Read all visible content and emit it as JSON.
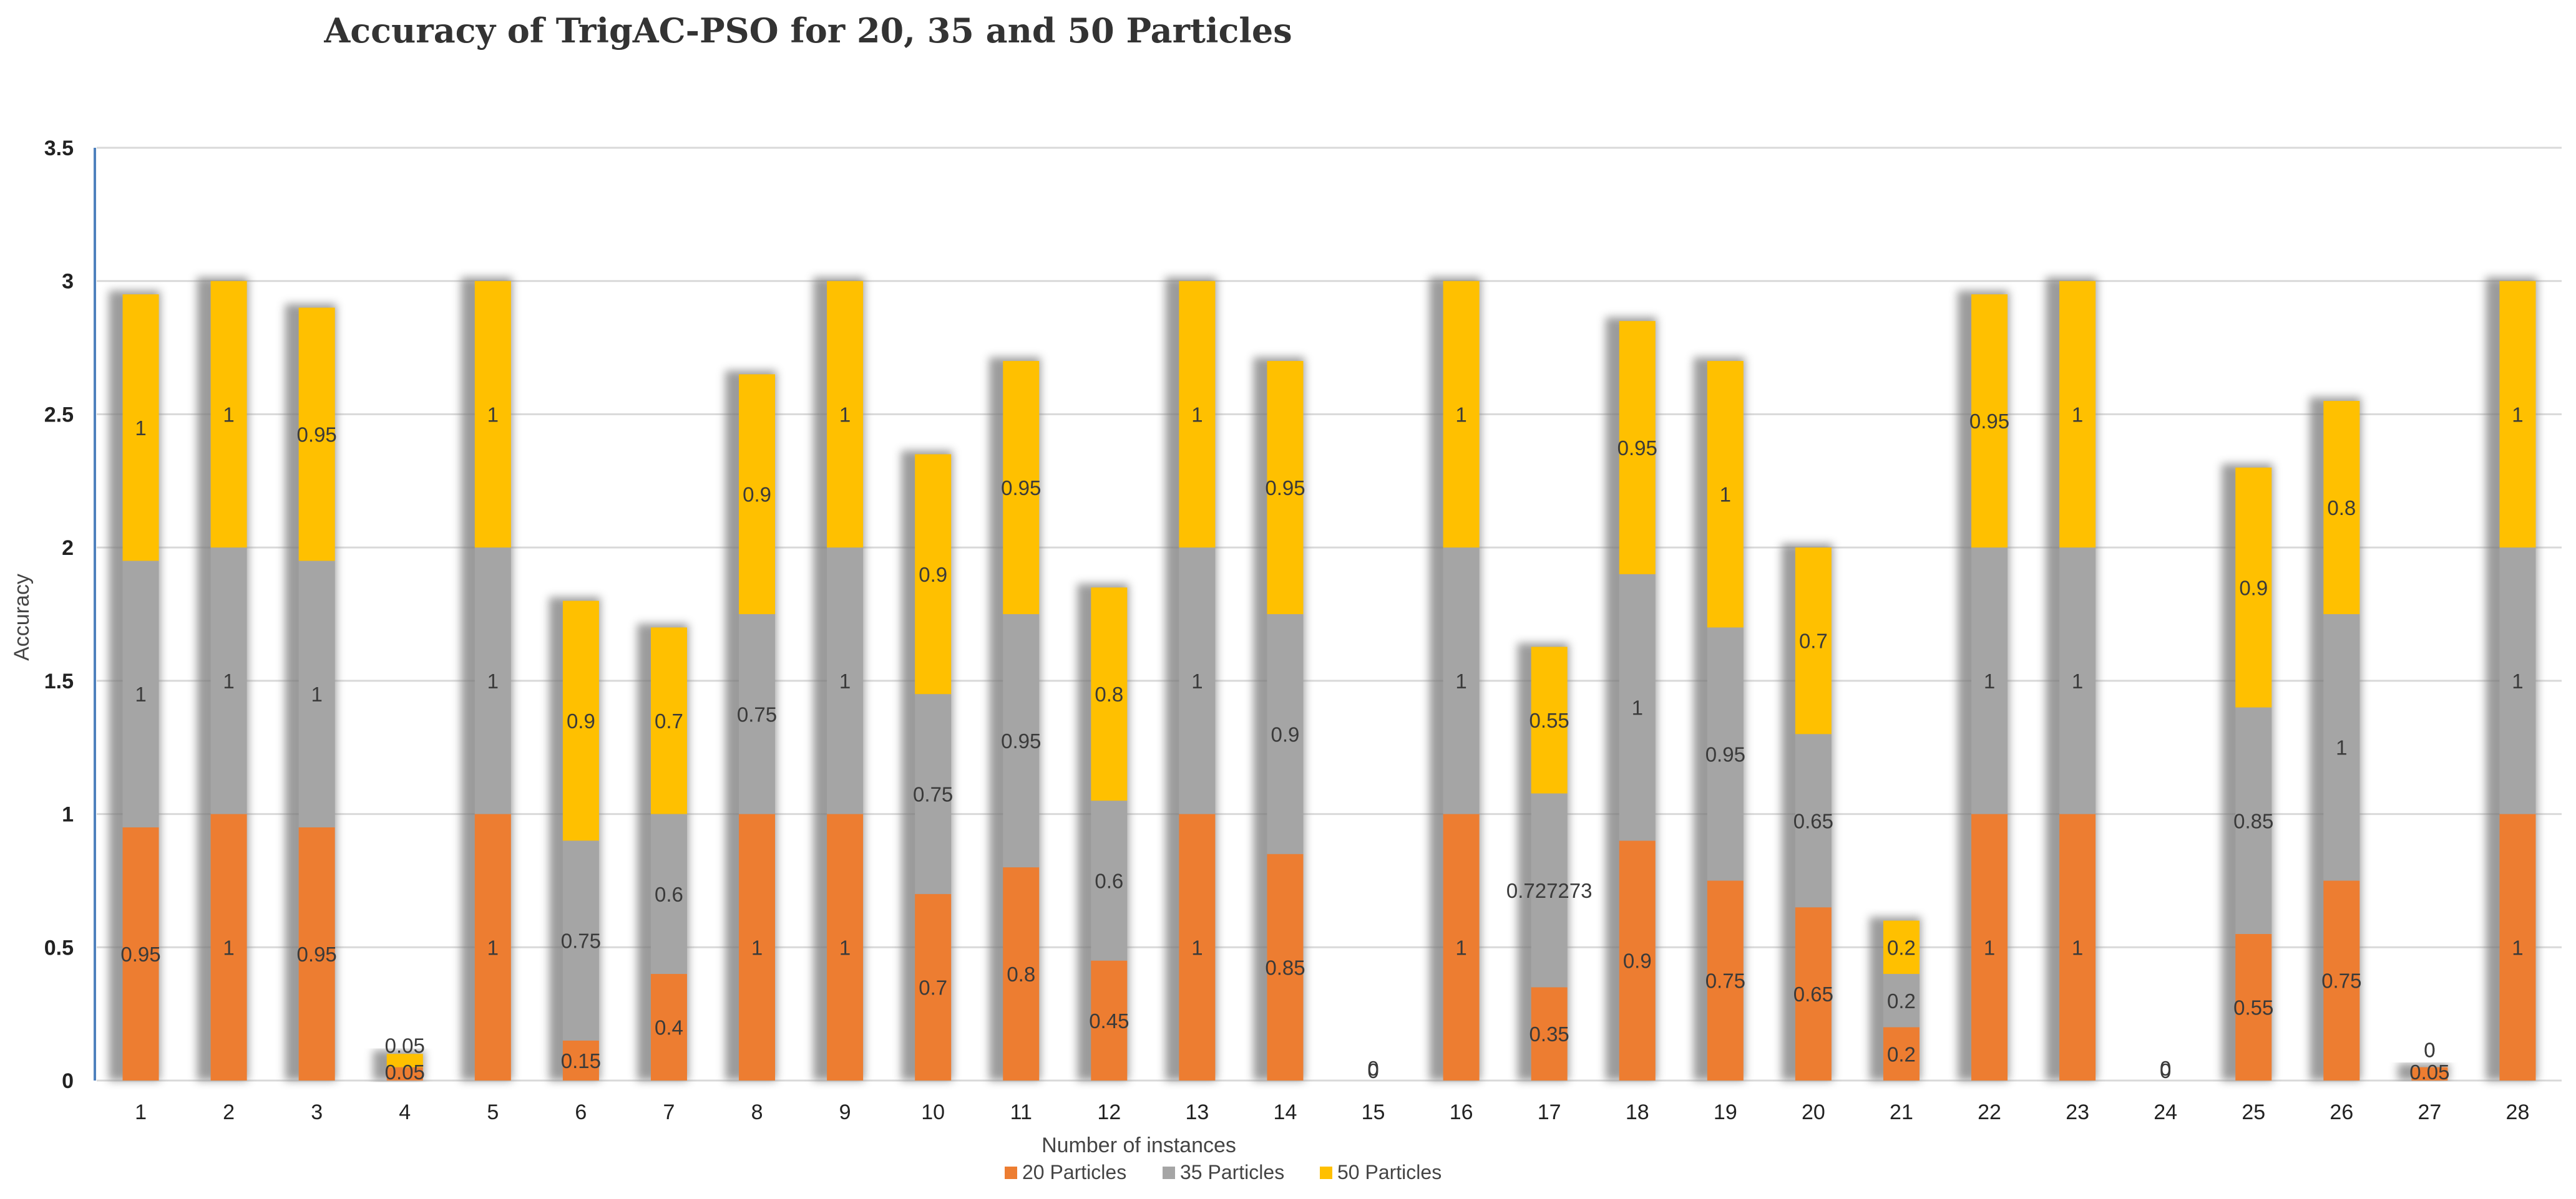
{
  "chart_data": {
    "type": "bar",
    "stacked": true,
    "title": "Accuracy of TrigAC-PSO for 20, 35 and 50 Particles",
    "xlabel": "Number of instances",
    "ylabel": "Accuracy",
    "ylim": [
      0,
      3.5
    ],
    "yticks": [
      "0",
      "0.5",
      "1",
      "1.5",
      "2",
      "2.5",
      "3",
      "3.5"
    ],
    "grid": true,
    "legend_position": "bottom",
    "categories": [
      "1",
      "2",
      "3",
      "4",
      "5",
      "6",
      "7",
      "8",
      "9",
      "10",
      "11",
      "12",
      "13",
      "14",
      "15",
      "16",
      "17",
      "18",
      "19",
      "20",
      "21",
      "22",
      "23",
      "24",
      "25",
      "26",
      "27",
      "28"
    ],
    "series": [
      {
        "name": "20 Particles",
        "color": "#ED7D31",
        "values": [
          0.95,
          1,
          0.95,
          0.05,
          1,
          0.15,
          0.4,
          1,
          1,
          0.7,
          0.8,
          0.45,
          1,
          0.85,
          0,
          1,
          0.35,
          0.9,
          0.75,
          0.65,
          0.2,
          1,
          1,
          0,
          0.55,
          0.75,
          0.05,
          1
        ],
        "labels": [
          "0.95",
          "1",
          "0.95",
          "0.05",
          "1",
          "0.15",
          "0.4",
          "1",
          "1",
          "0.7",
          "0.8",
          "0.45",
          "1",
          "0.85",
          "0",
          "1",
          "0.35",
          "0.9",
          "0.75",
          "0.65",
          "0.2",
          "1",
          "1",
          "0",
          "0.55",
          "0.75",
          "0.05",
          "1"
        ]
      },
      {
        "name": "35 Particles",
        "color": "#A5A5A5",
        "values": [
          1,
          1,
          1,
          0,
          1,
          0.75,
          0.6,
          0.75,
          1,
          0.75,
          0.95,
          0.6,
          1,
          0.9,
          0,
          1,
          0.727273,
          1,
          0.95,
          0.65,
          0.2,
          1,
          1,
          0,
          0.85,
          1,
          0,
          1
        ],
        "labels": [
          "1",
          "1",
          "1",
          "",
          "1",
          "0.75",
          "0.6",
          "0.75",
          "1",
          "0.75",
          "0.95",
          "0.6",
          "1",
          "0.9",
          "",
          "1",
          "0.727273",
          "1",
          "0.95",
          "0.65",
          "0.2",
          "1",
          "1",
          "",
          "0.85",
          "1",
          "0",
          "1"
        ]
      },
      {
        "name": "50 Particles",
        "color": "#FFC000",
        "values": [
          1,
          1,
          0.95,
          0.05,
          1,
          0.9,
          0.7,
          0.9,
          1,
          0.9,
          0.95,
          0.8,
          1,
          0.95,
          0,
          1,
          0.55,
          0.95,
          1,
          0.7,
          0.2,
          0.95,
          1,
          0,
          0.9,
          0.8,
          0,
          1
        ],
        "labels": [
          "1",
          "1",
          "0.95",
          "0.05",
          "1",
          "0.9",
          "0.7",
          "0.9",
          "1",
          "0.9",
          "0.95",
          "0.8",
          "1",
          "0.95",
          "0",
          "1",
          "0.55",
          "0.95",
          "1",
          "0.7",
          "0.2",
          "0.95",
          "1",
          "0",
          "0.9",
          "0.8",
          "0",
          "1"
        ]
      }
    ]
  }
}
